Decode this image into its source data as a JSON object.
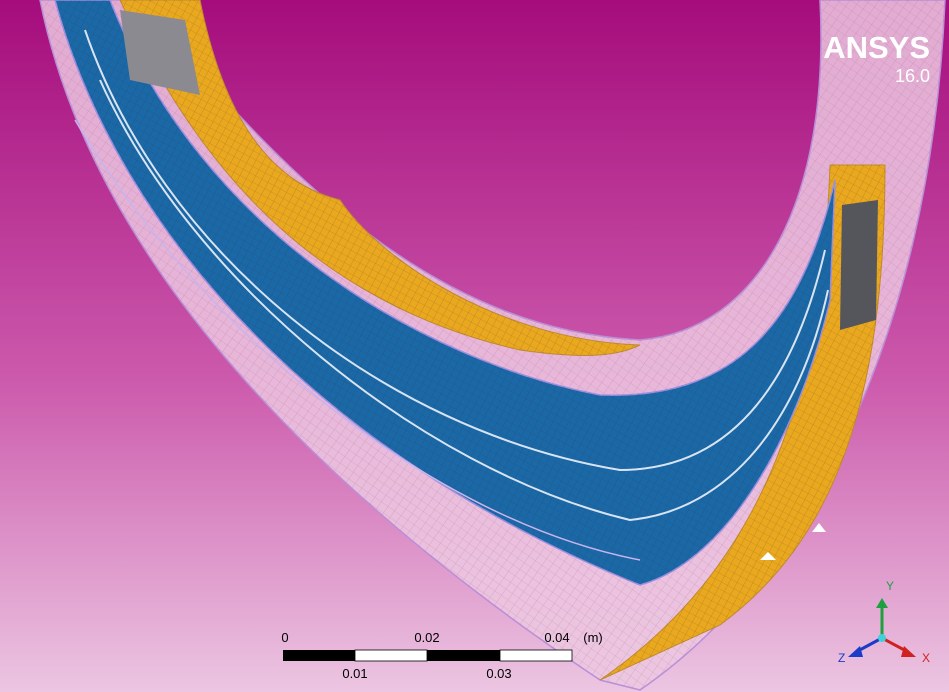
{
  "logo": {
    "name": "ANSYS",
    "version": "16.0"
  },
  "scale_bar": {
    "top_labels": [
      "0",
      "0.02",
      "0.04"
    ],
    "unit": "(m)",
    "bottom_labels": [
      "0.01",
      "0.03"
    ]
  },
  "triad": {
    "y": "Y",
    "z": "Z",
    "x": "X"
  }
}
